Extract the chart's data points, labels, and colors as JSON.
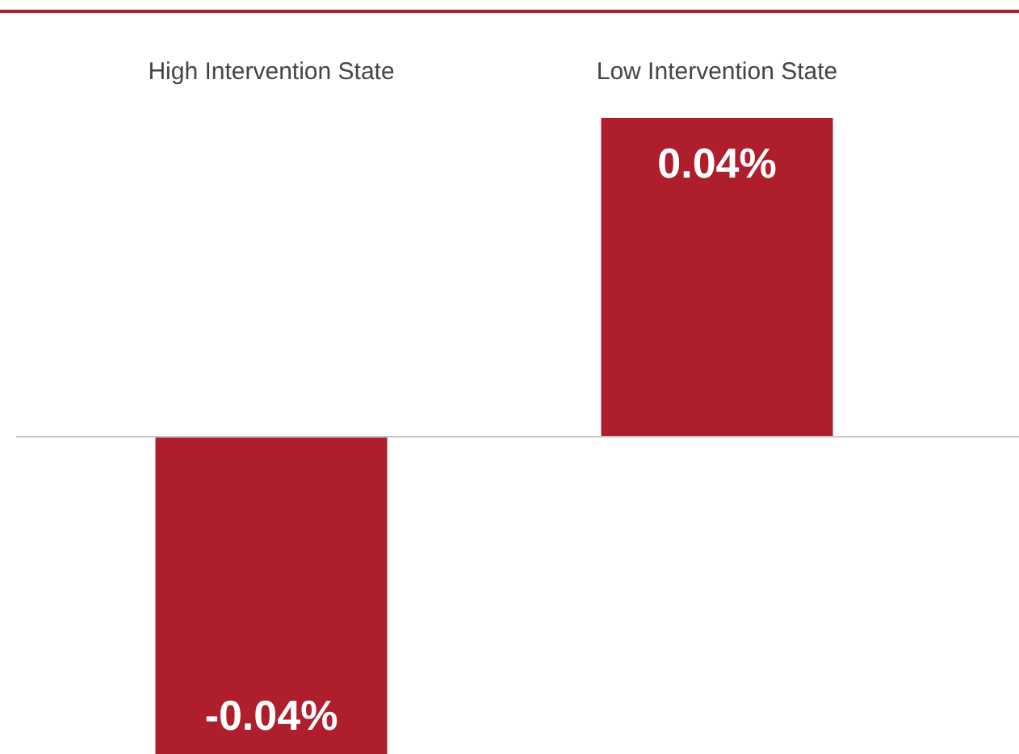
{
  "chart_data": {
    "type": "bar",
    "categories": [
      "High Intervention State",
      "Low Intervention State"
    ],
    "values": [
      -0.04,
      0.04
    ],
    "value_labels": [
      "-0.04%",
      "0.04%"
    ],
    "color": "#ae1e2d"
  }
}
